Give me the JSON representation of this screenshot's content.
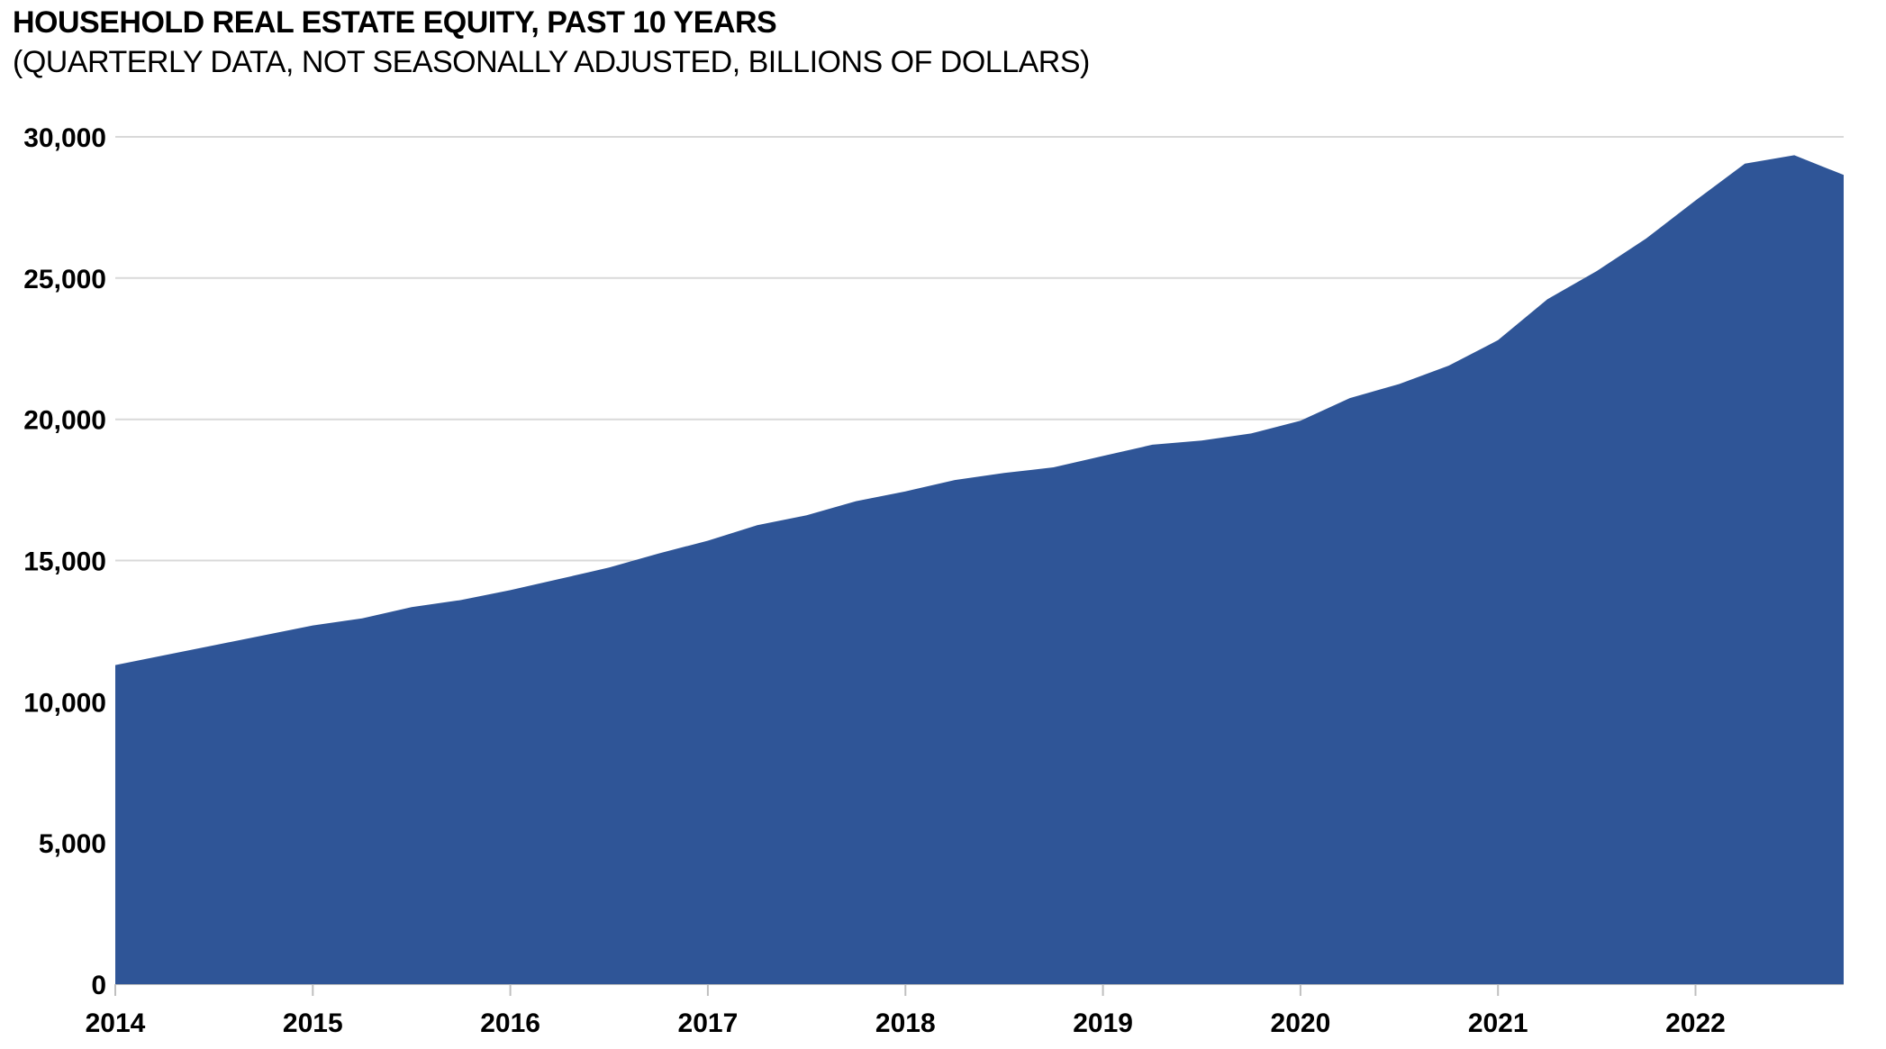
{
  "header": {
    "title": "HOUSEHOLD REAL ESTATE EQUITY, PAST 10 YEARS",
    "subtitle": "(QUARTERLY DATA, NOT SEASONALLY ADJUSTED, BILLIONS OF DOLLARS)"
  },
  "chart_data": {
    "type": "area",
    "title": "HOUSEHOLD REAL ESTATE EQUITY, PAST 10 YEARS",
    "subtitle": "(QUARTERLY DATA, NOT SEASONALLY ADJUSTED, BILLIONS OF DOLLARS)",
    "series_name": "Household real estate equity (billions of dollars)",
    "x": [
      "2014 Q1",
      "2014 Q2",
      "2014 Q3",
      "2014 Q4",
      "2015 Q1",
      "2015 Q2",
      "2015 Q3",
      "2015 Q4",
      "2016 Q1",
      "2016 Q2",
      "2016 Q3",
      "2016 Q4",
      "2017 Q1",
      "2017 Q2",
      "2017 Q3",
      "2017 Q4",
      "2018 Q1",
      "2018 Q2",
      "2018 Q3",
      "2018 Q4",
      "2019 Q1",
      "2019 Q2",
      "2019 Q3",
      "2019 Q4",
      "2020 Q1",
      "2020 Q2",
      "2020 Q3",
      "2020 Q4",
      "2021 Q1",
      "2021 Q2",
      "2021 Q3",
      "2021 Q4",
      "2022 Q1",
      "2022 Q2",
      "2022 Q3",
      "2022 Q4"
    ],
    "values": [
      11300,
      11650,
      12000,
      12350,
      12700,
      12950,
      13350,
      13600,
      13950,
      14350,
      14750,
      15250,
      15700,
      16250,
      16600,
      17100,
      17450,
      17850,
      18100,
      18300,
      18700,
      19100,
      19250,
      19500,
      19950,
      20750,
      21250,
      21900,
      22800,
      24250,
      25250,
      26400,
      27750,
      29050,
      29350,
      28650
    ],
    "x_tick_labels": [
      "2014",
      "2015",
      "2016",
      "2017",
      "2018",
      "2019",
      "2020",
      "2021",
      "2022"
    ],
    "y_ticks": [
      0,
      5000,
      10000,
      15000,
      20000,
      25000,
      30000
    ],
    "y_tick_labels": [
      "0",
      "5,000",
      "10,000",
      "15,000",
      "20,000",
      "25,000",
      "30,000"
    ],
    "ylim": [
      0,
      30000
    ],
    "grid": "horizontal",
    "legend": "none",
    "colors": {
      "area": "#2F5597",
      "gridline": "#D9D9D9",
      "axis": "#BFBFBF",
      "text": "#000000"
    }
  }
}
